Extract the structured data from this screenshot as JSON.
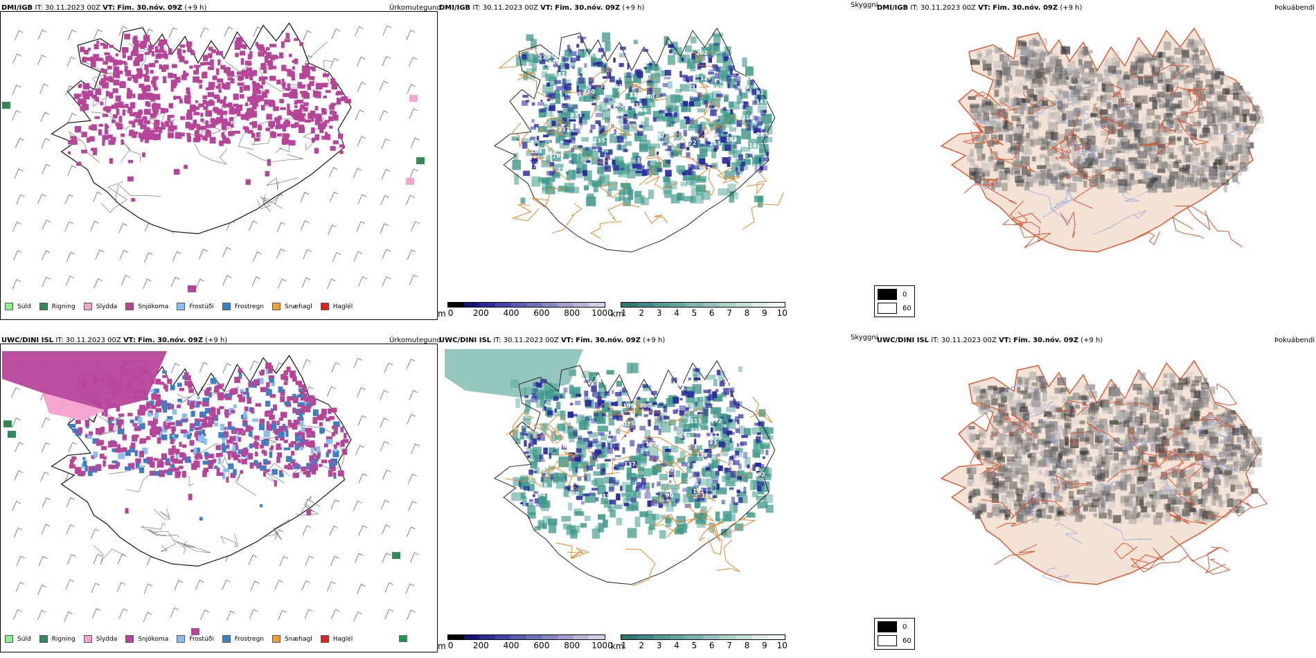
{
  "rows": [
    {
      "precip": {
        "model": "DMI/IGB",
        "it_label": "IT:",
        "it_value": "30.11.2023 00Z",
        "vt_label": "VT:",
        "vt_value": "Fim. 30.nóv. 09Z",
        "lead": "(+9 h)",
        "panel_title": "Úrkomutegund"
      },
      "cloud": {
        "model": "DMI/IGB",
        "it_label": "IT:",
        "it_value": "30.11.2023 00Z",
        "vt_label": "VT:",
        "vt_value": "Fim. 30.nóv. 09Z",
        "lead": "(+9 h)",
        "panel_title": "Skyggni",
        "visibility_labels": [
          "57",
          "155",
          "183",
          "355",
          "185",
          "243",
          "235",
          "466",
          "134",
          "233",
          "560",
          "157",
          "117",
          "265",
          "127",
          "472",
          "157",
          "360",
          "199",
          "152",
          "99",
          "115",
          "163",
          "133",
          "289",
          "29",
          "91",
          "239",
          "238",
          "210",
          "277",
          "205",
          "202",
          "973",
          "880",
          "760",
          "81",
          "80",
          "217",
          "556",
          "508",
          "184",
          "715",
          "25",
          "418",
          "110",
          "125",
          "77",
          "122",
          "91",
          "174",
          "183",
          "185"
        ]
      },
      "fog": {
        "model": "DMI/IGB",
        "it_label": "IT:",
        "it_value": "30.11.2023 00Z",
        "vt_label": "VT:",
        "vt_value": "Fim. 30.nóv. 09Z",
        "lead": "(+9 h)",
        "panel_title": "Þokuábendi"
      }
    },
    {
      "precip": {
        "model": "UWC/DINI ISL",
        "it_label": "IT:",
        "it_value": "30.11.2023 00Z",
        "vt_label": "VT:",
        "vt_value": "Fim. 30.nóv. 09Z",
        "lead": "(+9 h)",
        "panel_title": "Úrkomutegund"
      },
      "cloud": {
        "model": "UWC/DINI ISL",
        "it_label": "IT:",
        "it_value": "30.11.2023 00Z",
        "vt_label": "VT:",
        "vt_value": "Fim. 30.nóv. 09Z",
        "lead": "(+9 h)",
        "panel_title": "Skyggni",
        "visibility_labels": [
          "380",
          "172",
          "199",
          "183",
          "323",
          "94",
          "111",
          "63",
          "104",
          "200",
          "415",
          "95",
          "90",
          "111",
          "207",
          "219",
          "324",
          "152",
          "118",
          "126",
          "114",
          "116",
          "120",
          "158",
          "268",
          "495",
          "89",
          "79",
          "68",
          "137",
          "316",
          "292",
          "103",
          "284",
          "109",
          "151",
          "109"
        ]
      },
      "fog": {
        "model": "UWC/DINI ISL",
        "it_label": "IT:",
        "it_value": "30.11.2023 00Z",
        "vt_label": "VT:",
        "vt_value": "Fim. 30.nóv. 09Z",
        "lead": "(+9 h)",
        "panel_title": "Þokuábendi"
      }
    }
  ],
  "precip_legend": [
    {
      "label": "Súld",
      "color": "#90ee90"
    },
    {
      "label": "Rigning",
      "color": "#2e8b57"
    },
    {
      "label": "Slydda",
      "color": "#f4a6d0"
    },
    {
      "label": "Snjókoma",
      "color": "#b8449a"
    },
    {
      "label": "Frostúði",
      "color": "#87bff0"
    },
    {
      "label": "Frostregn",
      "color": "#3b7fc4"
    },
    {
      "label": "Snæhagl",
      "color": "#f0a030"
    },
    {
      "label": "Haglél",
      "color": "#e02020"
    }
  ],
  "cloudbase_scale": {
    "unit": "m",
    "ticks": [
      "0",
      "200",
      "400",
      "600",
      "800",
      "1000"
    ],
    "colors": [
      "#000000",
      "#14147a",
      "#2a2a9c",
      "#4242ae",
      "#5a5ab8",
      "#7070c0",
      "#8888c8",
      "#a0a0d0",
      "#b8b8dc",
      "#d0d0e8"
    ]
  },
  "vis_scale": {
    "unit": "km",
    "ticks": [
      "1",
      "2",
      "3",
      "4",
      "5",
      "6",
      "7",
      "8",
      "9",
      "10"
    ],
    "colors": [
      "#2a7a78",
      "#3a8a86",
      "#4e9a94",
      "#64a8a2",
      "#7cb6b0",
      "#94c4be",
      "#acd2cc",
      "#c4e0dc",
      "#dcefec",
      "#f2faf8"
    ]
  },
  "fog_legend": [
    {
      "label": "0",
      "color": "#000000"
    },
    {
      "label": "60",
      "color": "#ffffff"
    }
  ],
  "colors": {
    "snow": "#b8449a",
    "rain": "#2e8b57",
    "frz": "#3b7fc4",
    "frzdz": "#87bff0",
    "sleet": "#f4a6d0",
    "road_orange": "#e8862a",
    "road_red": "#e0502a",
    "land": "#f3e3d6",
    "cloud_blue": "#2a2aa0",
    "vis_teal": "#3e9a8a",
    "fog_grey": "#6a6a6a"
  }
}
